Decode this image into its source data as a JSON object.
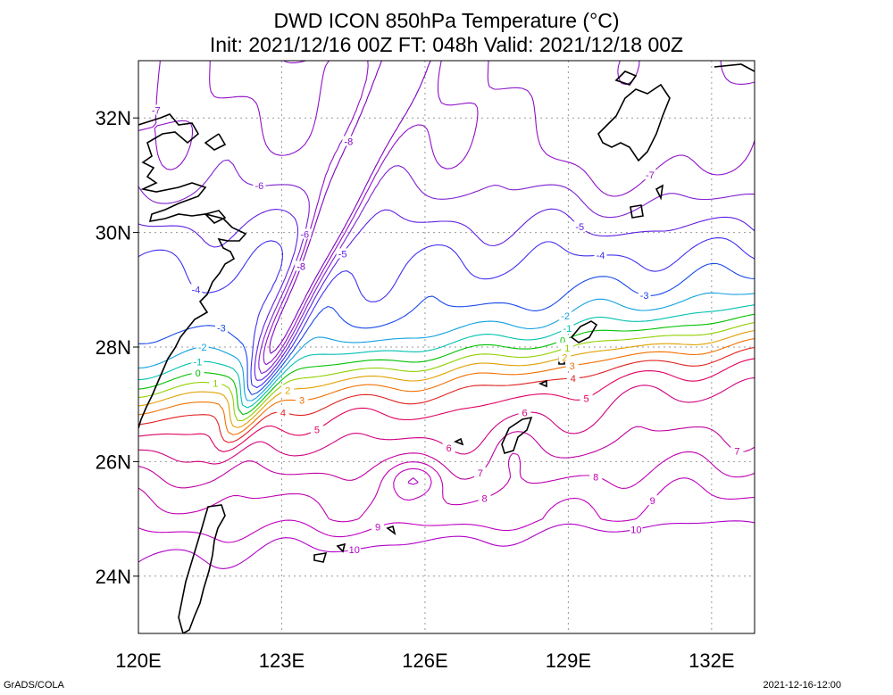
{
  "header": {
    "title": "DWD ICON 850hPa Temperature (°C)",
    "subtitle": "Init: 2021/12/16 00Z  FT: 048h  Valid: 2021/12/18 00Z"
  },
  "footer": {
    "left": "GrADS/COLA",
    "right": "2021-12-16-12:00"
  },
  "map": {
    "lon_range": [
      120,
      132.9
    ],
    "lat_range": [
      23,
      33
    ],
    "x_ticks": [
      "120E",
      "123E",
      "126E",
      "129E",
      "132E"
    ],
    "y_ticks": [
      "24N",
      "26N",
      "28N",
      "30N",
      "32N"
    ],
    "grid": "dotted",
    "contour_interval": 1
  },
  "colors": {
    "-8": "#8000c0",
    "-7": "#9010c8",
    "-6": "#8020d0",
    "-5": "#6020e0",
    "-4": "#4030f0",
    "-3": "#1848e8",
    "-2": "#10a0e0",
    "-1": "#00c0b0",
    "0": "#00c000",
    "1": "#90d000",
    "2": "#e0a000",
    "3": "#f07000",
    "4": "#e02020",
    "5": "#e00060",
    "6": "#d00080",
    "7": "#c000a0",
    "8": "#c000b0",
    "9": "#c000c0",
    "10": "#b000c8"
  },
  "contour_labels": [
    "-8",
    "-7",
    "-6",
    "-5",
    "-4",
    "-3",
    "-2",
    "-1",
    "0",
    "1",
    "2",
    "3",
    "4",
    "5",
    "6",
    "7",
    "8",
    "9",
    "10"
  ]
}
